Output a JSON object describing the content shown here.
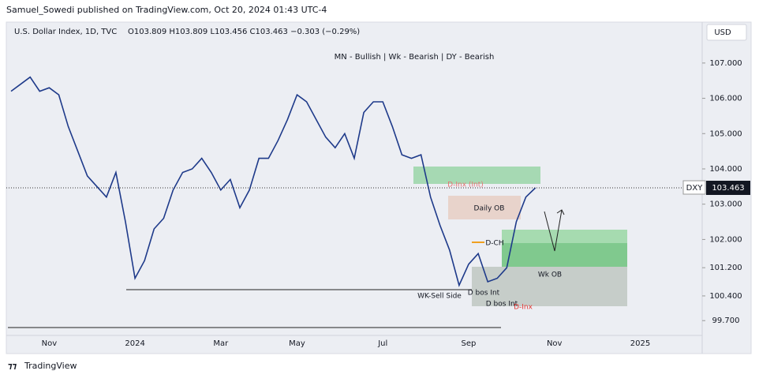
{
  "header": {
    "attribution": "Samuel_Sowedi published on TradingView.com, Oct 20, 2024 01:43 UTC-4",
    "currency": "USD"
  },
  "chart_data": {
    "type": "line",
    "title": "U.S. Dollar Index, 1D, TVC",
    "ohlc_text": "O103.809 H103.809 L103.456 C103.463 −0.303 (−0.29%)",
    "subtitle": "MN - Bullish | Wk - Bearish | DY - Bearish",
    "symbol": "DXY",
    "last_price": 103.463,
    "categories": [
      null,
      null,
      null,
      null,
      "Nov",
      null,
      null,
      null,
      null,
      null,
      null,
      null,
      null,
      "2024",
      null,
      null,
      null,
      null,
      null,
      null,
      null,
      null,
      "Mar",
      null,
      null,
      null,
      null,
      null,
      null,
      null,
      "May",
      null,
      null,
      null,
      null,
      null,
      null,
      null,
      null,
      "Jul",
      null,
      null,
      null,
      null,
      null,
      null,
      null,
      null,
      "Sep",
      null,
      null,
      null,
      null,
      null,
      null,
      null,
      null,
      "Nov",
      null,
      null,
      null,
      null,
      null,
      null,
      null,
      null,
      "2025",
      null,
      null,
      null,
      null,
      null,
      null
    ],
    "values": [
      106.2,
      106.4,
      106.6,
      106.2,
      106.3,
      106.1,
      105.2,
      104.5,
      103.8,
      103.5,
      103.2,
      103.9,
      102.5,
      100.9,
      101.4,
      102.3,
      102.6,
      103.4,
      103.9,
      104.0,
      104.3,
      103.9,
      103.4,
      103.7,
      102.9,
      103.4,
      104.3,
      104.3,
      104.8,
      105.4,
      106.1,
      105.9,
      105.4,
      104.9,
      104.6,
      105.0,
      104.3,
      105.6,
      105.9,
      105.9,
      105.2,
      104.4,
      104.3,
      104.4,
      103.2,
      102.4,
      101.7,
      100.7,
      101.3,
      101.6,
      100.8,
      100.9,
      101.2,
      102.5,
      103.2,
      103.463,
      null,
      null,
      null,
      null,
      null,
      null,
      null,
      null,
      null,
      null,
      null,
      null,
      null,
      null,
      null,
      null,
      null
    ],
    "color": "#1e3a8a",
    "ylim": [
      99.28,
      108.16
    ],
    "yticks": [
      {
        "value": 99.7,
        "label": "99.700"
      },
      {
        "value": 100.4,
        "label": "100.400"
      },
      {
        "value": 101.2,
        "label": "101.200"
      },
      {
        "value": 102,
        "label": "102.000"
      },
      {
        "value": 103,
        "label": "103.000"
      },
      {
        "value": 104,
        "label": "104.000"
      },
      {
        "value": 105,
        "label": "105.000"
      },
      {
        "value": 106,
        "label": "106.000"
      },
      {
        "value": 107,
        "label": "107.000"
      }
    ],
    "annotations": [
      "Daily OB",
      "Wk OB",
      "D-CH",
      "D bos Int",
      "D bos Int",
      "WK-Sell Side",
      "D-Inx (Int)",
      "D-Inx"
    ]
  },
  "footer": {
    "brand": "TradingView"
  }
}
